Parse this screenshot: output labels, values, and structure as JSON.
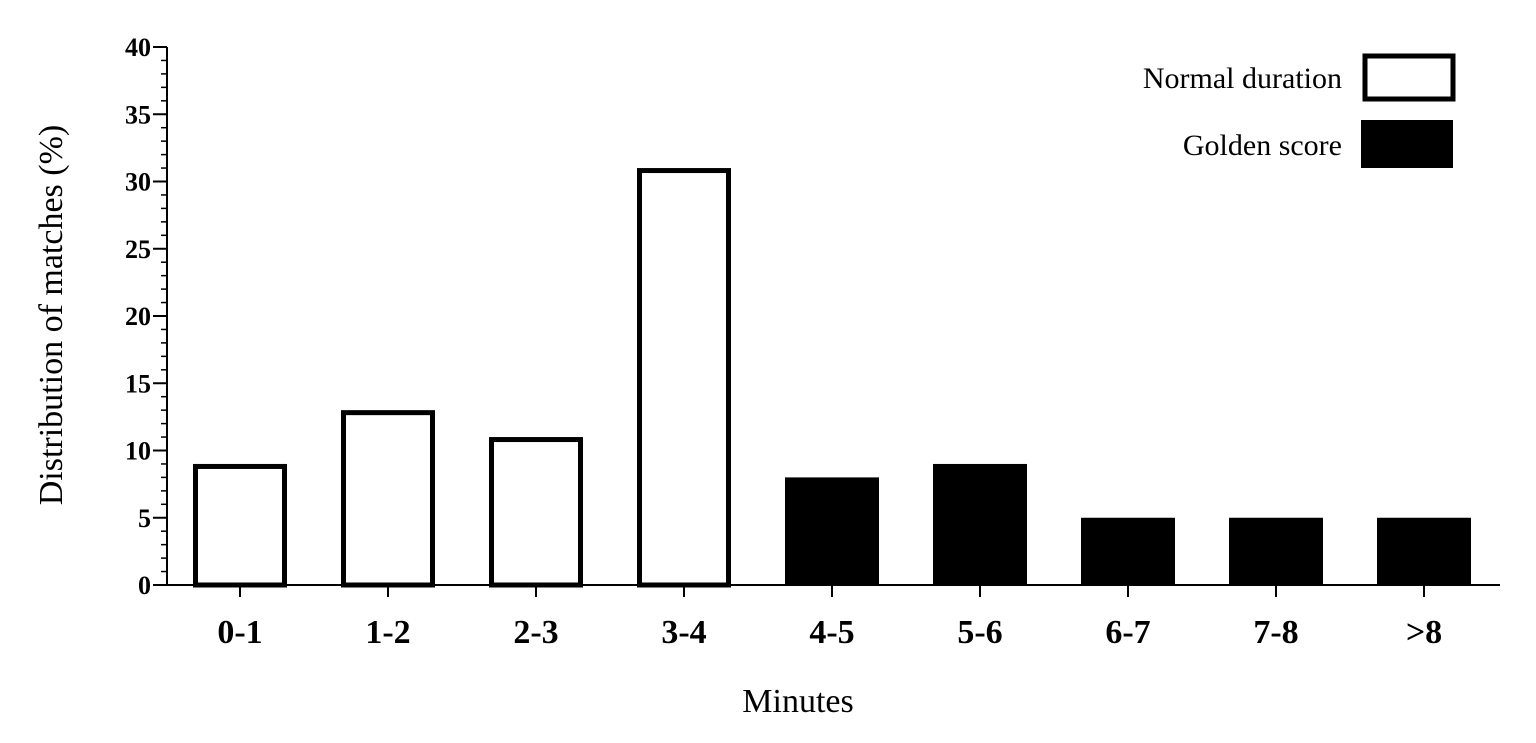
{
  "chart_data": {
    "type": "bar",
    "categories": [
      "0-1",
      "1-2",
      "2-3",
      "3-4",
      "4-5",
      "5-6",
      "6-7",
      "7-8",
      ">8"
    ],
    "values": [
      9,
      13,
      11,
      31,
      8,
      9,
      5,
      5,
      5
    ],
    "groups": [
      "normal",
      "normal",
      "normal",
      "normal",
      "golden",
      "golden",
      "golden",
      "golden",
      "golden"
    ],
    "xlabel": "Minutes",
    "ylabel": "Distribution of matches (%)",
    "ylim": [
      0,
      40
    ],
    "yticks": [
      0,
      5,
      10,
      15,
      20,
      25,
      30,
      35,
      40
    ],
    "grid": false,
    "legend_position": "top-right",
    "legend": [
      {
        "key": "normal",
        "label": "Normal duration",
        "fill": "#ffffff",
        "stroke": "#000000"
      },
      {
        "key": "golden",
        "label": "Golden score",
        "fill": "#000000",
        "stroke": "#000000"
      }
    ]
  }
}
